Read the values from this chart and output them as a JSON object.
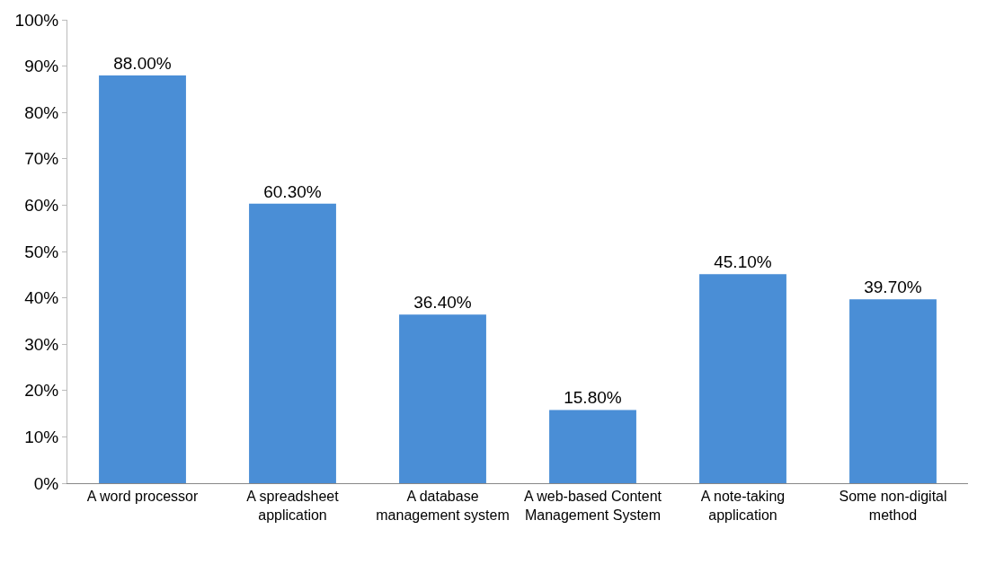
{
  "chart_data": {
    "type": "bar",
    "categories": [
      "A word processor",
      "A spreadsheet application",
      "A database management system",
      "A web-based Content Management System",
      "A note-taking application",
      "Some non-digital method"
    ],
    "values": [
      88.0,
      60.3,
      36.4,
      15.8,
      45.1,
      39.7
    ],
    "value_labels": [
      "88.00%",
      "60.30%",
      "36.40%",
      "15.80%",
      "45.10%",
      "39.70%"
    ],
    "color": "#4a8ed6",
    "ylim": [
      0,
      100
    ],
    "yticks": [
      {
        "value": 0,
        "label": "0%"
      },
      {
        "value": 10,
        "label": "10%"
      },
      {
        "value": 20,
        "label": "20%"
      },
      {
        "value": 30,
        "label": "30%"
      },
      {
        "value": 40,
        "label": "40%"
      },
      {
        "value": 50,
        "label": "50%"
      },
      {
        "value": 60,
        "label": "60%"
      },
      {
        "value": 70,
        "label": "70%"
      },
      {
        "value": 80,
        "label": "80%"
      },
      {
        "value": 90,
        "label": "90%"
      },
      {
        "value": 100,
        "label": "100%"
      }
    ]
  }
}
